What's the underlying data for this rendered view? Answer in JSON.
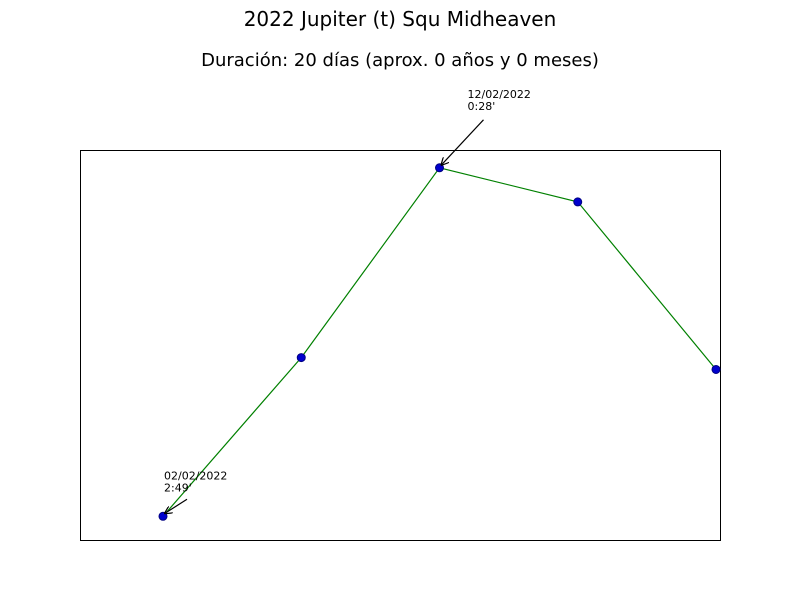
{
  "chart_data": {
    "type": "line",
    "title": "2022 Jupiter (t) Squ Midheaven",
    "subtitle": "Duración: 20 días (aprox. 0 años y 0 meses)",
    "x": [
      "2022-02-02",
      "2022-02-07",
      "2022-02-12",
      "2022-02-17",
      "2022-02-22"
    ],
    "series": [
      {
        "values": [
          2.82,
          1.75,
          0.47,
          0.7,
          1.83
        ]
      }
    ],
    "y_inverted": true,
    "ylim": [
      0.35,
      2.98
    ],
    "grid": false,
    "axes_ticks_visible": false,
    "annotations": [
      {
        "point_index": 0,
        "date": "02/02/2022",
        "value": "2:49'"
      },
      {
        "point_index": 2,
        "date": "12/02/2022",
        "value": "0:28'"
      }
    ],
    "colors": {
      "line": "#008000",
      "marker_fill": "#0000cd",
      "marker_edge": "#000080",
      "arrow": "#000000"
    }
  }
}
